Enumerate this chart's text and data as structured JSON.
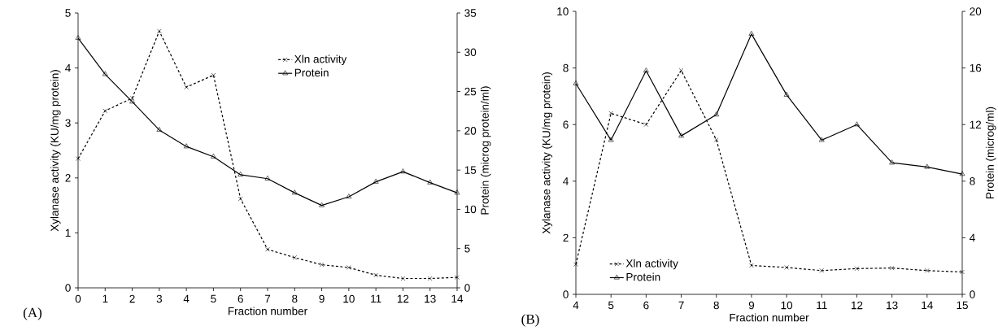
{
  "chart_data": [
    {
      "type": "line",
      "xlabel": "Fraction number",
      "ylabel": "Xylanase activity (KU/mg protein)",
      "y2label": "Protein (microg protein/ml)",
      "x": [
        0,
        1,
        2,
        3,
        4,
        5,
        6,
        7,
        8,
        9,
        10,
        11,
        12,
        13,
        14
      ],
      "xlim": [
        0,
        14
      ],
      "xticks": [
        0,
        1,
        2,
        3,
        4,
        5,
        6,
        7,
        8,
        9,
        10,
        11,
        12,
        13,
        14
      ],
      "ylim": [
        0,
        5
      ],
      "yticks": [
        0,
        1,
        2,
        3,
        4,
        5
      ],
      "y2lim": [
        0,
        35
      ],
      "y2ticks": [
        0,
        5,
        10,
        15,
        20,
        25,
        30,
        35
      ],
      "legend": "top",
      "annotations": [
        "(A)"
      ],
      "series": [
        {
          "name": "Xln activity",
          "color": "#000000",
          "marker": "cross",
          "line_style": "dashed",
          "values": [
            2.35,
            3.22,
            3.45,
            4.67,
            3.65,
            3.87,
            1.62,
            0.7,
            0.55,
            0.42,
            0.37,
            0.23,
            0.17,
            0.17,
            0.19
          ]
        },
        {
          "name": "Protein",
          "color": "#000000",
          "marker": "triangle",
          "line_style": "solid",
          "axis": "y2",
          "values": [
            31.8,
            27.2,
            23.7,
            20.1,
            18.0,
            16.7,
            14.4,
            13.9,
            12.1,
            10.5,
            11.6,
            13.5,
            14.8,
            13.4,
            12.1
          ]
        }
      ]
    },
    {
      "type": "line",
      "xlabel": "Fraction number",
      "ylabel": "Xylanase activity (KU/mg protein)",
      "y2label": "Protein (microg/ml)",
      "x": [
        4,
        5,
        6,
        7,
        8,
        9,
        10,
        11,
        12,
        13,
        14,
        15
      ],
      "xlim": [
        4,
        15
      ],
      "xticks": [
        4,
        5,
        6,
        7,
        8,
        9,
        10,
        11,
        12,
        13,
        14,
        15
      ],
      "ylim": [
        0,
        10
      ],
      "yticks": [
        0,
        2,
        4,
        6,
        8,
        10
      ],
      "y2lim": [
        0,
        20
      ],
      "y2ticks": [
        0,
        4,
        8,
        12,
        16,
        20
      ],
      "legend": "bottom left",
      "annotations": [
        "(B)"
      ],
      "series": [
        {
          "name": "Xln activity",
          "color": "#000000",
          "marker": "cross",
          "line_style": "dashed",
          "values": [
            1.06,
            6.4,
            6.0,
            7.91,
            5.46,
            1.02,
            0.95,
            0.84,
            0.91,
            0.93,
            0.84,
            0.79
          ]
        },
        {
          "name": "Protein",
          "color": "#000000",
          "marker": "triangle",
          "line_style": "solid",
          "axis": "y2",
          "values": [
            14.9,
            10.9,
            15.8,
            11.2,
            12.7,
            18.4,
            14.1,
            10.9,
            12.0,
            9.3,
            9.0,
            8.5
          ]
        }
      ]
    }
  ]
}
